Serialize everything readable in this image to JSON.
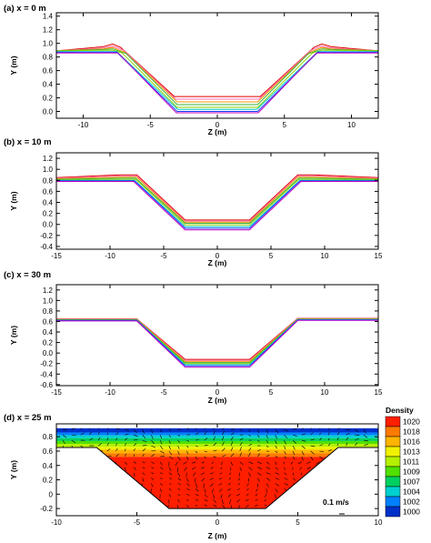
{
  "chart_data": [
    {
      "type": "line",
      "title": "(a) x = 0 m",
      "xlabel": "Z (m)",
      "ylabel": "Y (m)",
      "xlim": [
        -12,
        12
      ],
      "ylim": [
        -0.1,
        1.45
      ],
      "xticks": [
        -10,
        -5,
        0,
        5,
        10
      ],
      "xtick_labels": [
        "-10",
        "-5",
        "0",
        "5",
        "10"
      ],
      "yticks": [
        0.0,
        0.2,
        0.4,
        0.6,
        0.8,
        1.0,
        1.2,
        1.4
      ],
      "ytick_labels": [
        "0.0",
        "0.2",
        "0.4",
        "0.6",
        "0.8",
        "1.0",
        "1.2",
        "1.4"
      ],
      "grid": false,
      "series": [
        {
          "color": "#e00000",
          "values": [
            [
              -12,
              0.89
            ],
            [
              -8.5,
              0.95
            ],
            [
              -7.8,
              0.99
            ],
            [
              -7.2,
              0.94
            ],
            [
              -3.2,
              0.22
            ],
            [
              3.2,
              0.22
            ],
            [
              7.2,
              0.94
            ],
            [
              7.8,
              0.99
            ],
            [
              8.5,
              0.95
            ],
            [
              12,
              0.89
            ]
          ]
        },
        {
          "color": "#ff6fb4",
          "values": [
            [
              -12,
              0.89
            ],
            [
              -8.5,
              0.93
            ],
            [
              -7.8,
              0.96
            ],
            [
              -7.0,
              0.9
            ],
            [
              -3.1,
              0.18
            ],
            [
              3.1,
              0.18
            ],
            [
              7.0,
              0.9
            ],
            [
              7.8,
              0.96
            ],
            [
              8.5,
              0.93
            ],
            [
              12,
              0.89
            ]
          ]
        },
        {
          "color": "#ff9a00",
          "values": [
            [
              -12,
              0.89
            ],
            [
              -8.5,
              0.92
            ],
            [
              -7.8,
              0.94
            ],
            [
              -6.9,
              0.87
            ],
            [
              -3.0,
              0.14
            ],
            [
              3.0,
              0.14
            ],
            [
              6.9,
              0.87
            ],
            [
              7.8,
              0.94
            ],
            [
              8.5,
              0.92
            ],
            [
              12,
              0.89
            ]
          ]
        },
        {
          "color": "#3ab03a",
          "values": [
            [
              -12,
              0.89
            ],
            [
              -8.5,
              0.91
            ],
            [
              -7.8,
              0.92
            ],
            [
              -6.8,
              0.85
            ],
            [
              -3.0,
              0.1
            ],
            [
              3.0,
              0.1
            ],
            [
              6.8,
              0.85
            ],
            [
              7.8,
              0.92
            ],
            [
              8.5,
              0.91
            ],
            [
              12,
              0.89
            ]
          ]
        },
        {
          "color": "#8cd000",
          "values": [
            [
              -12,
              0.89
            ],
            [
              -8.5,
              0.9
            ],
            [
              -7.8,
              0.9
            ],
            [
              -7.1,
              0.86
            ],
            [
              -3.0,
              0.06
            ],
            [
              3.0,
              0.06
            ],
            [
              7.1,
              0.86
            ],
            [
              7.8,
              0.9
            ],
            [
              8.5,
              0.9
            ],
            [
              12,
              0.89
            ]
          ]
        },
        {
          "color": "#00c8c8",
          "values": [
            [
              -12,
              0.88
            ],
            [
              -7.5,
              0.88
            ],
            [
              -2.95,
              0.03
            ],
            [
              2.95,
              0.03
            ],
            [
              7.5,
              0.88
            ],
            [
              12,
              0.88
            ]
          ]
        },
        {
          "color": "#1a3cff",
          "values": [
            [
              -12,
              0.87
            ],
            [
              -7.5,
              0.87
            ],
            [
              -3.0,
              0.0
            ],
            [
              3.0,
              0.0
            ],
            [
              7.5,
              0.87
            ],
            [
              12,
              0.87
            ]
          ]
        },
        {
          "color": "#c000c0",
          "values": [
            [
              -12,
              0.86
            ],
            [
              -7.4,
              0.86
            ],
            [
              -3.05,
              -0.02
            ],
            [
              3.05,
              -0.02
            ],
            [
              7.4,
              0.86
            ],
            [
              12,
              0.86
            ]
          ]
        }
      ]
    },
    {
      "type": "line",
      "title": "(b) x = 10 m",
      "xlabel": "Z (m)",
      "ylabel": "Y (m)",
      "xlim": [
        -15,
        15
      ],
      "ylim": [
        -0.45,
        1.3
      ],
      "xticks": [
        -15,
        -10,
        -5,
        0,
        5,
        10,
        15
      ],
      "xtick_labels": [
        "-15",
        "-10",
        "-5",
        "0",
        "5",
        "10",
        "15"
      ],
      "yticks": [
        -0.4,
        -0.2,
        0.0,
        0.2,
        0.4,
        0.6,
        0.8,
        1.0,
        1.2
      ],
      "ytick_labels": [
        "-0.4",
        "-0.2",
        "0.0",
        "0.2",
        "0.4",
        "0.6",
        "0.8",
        "1.0",
        "1.2"
      ],
      "grid": false,
      "series": [
        {
          "color": "#e00000",
          "values": [
            [
              -15,
              0.85
            ],
            [
              -9,
              0.9
            ],
            [
              -7.5,
              0.9
            ],
            [
              -3.0,
              0.08
            ],
            [
              3.0,
              0.08
            ],
            [
              7.5,
              0.9
            ],
            [
              9,
              0.9
            ],
            [
              15,
              0.85
            ]
          ]
        },
        {
          "color": "#ff6fb4",
          "values": [
            [
              -15,
              0.84
            ],
            [
              -9,
              0.88
            ],
            [
              -7.5,
              0.88
            ],
            [
              -3.0,
              0.06
            ],
            [
              3.0,
              0.06
            ],
            [
              7.5,
              0.88
            ],
            [
              9,
              0.88
            ],
            [
              15,
              0.84
            ]
          ]
        },
        {
          "color": "#ff9a00",
          "values": [
            [
              -15,
              0.83
            ],
            [
              -9,
              0.86
            ],
            [
              -7.5,
              0.86
            ],
            [
              -3.0,
              0.04
            ],
            [
              3.0,
              0.04
            ],
            [
              7.5,
              0.86
            ],
            [
              9,
              0.86
            ],
            [
              15,
              0.83
            ]
          ]
        },
        {
          "color": "#3ab03a",
          "values": [
            [
              -15,
              0.82
            ],
            [
              -9,
              0.84
            ],
            [
              -7.6,
              0.84
            ],
            [
              -3.0,
              0.02
            ],
            [
              3.0,
              0.02
            ],
            [
              7.6,
              0.84
            ],
            [
              9,
              0.84
            ],
            [
              15,
              0.82
            ]
          ]
        },
        {
          "color": "#8cd000",
          "values": [
            [
              -15,
              0.81
            ],
            [
              -9,
              0.82
            ],
            [
              -7.6,
              0.82
            ],
            [
              -3.0,
              -0.01
            ],
            [
              3.0,
              -0.01
            ],
            [
              7.6,
              0.82
            ],
            [
              9,
              0.82
            ],
            [
              15,
              0.81
            ]
          ]
        },
        {
          "color": "#00c8c8",
          "values": [
            [
              -15,
              0.8
            ],
            [
              -7.7,
              0.8
            ],
            [
              -3.0,
              -0.04
            ],
            [
              3.0,
              -0.04
            ],
            [
              7.7,
              0.8
            ],
            [
              15,
              0.8
            ]
          ]
        },
        {
          "color": "#1a3cff",
          "values": [
            [
              -15,
              0.79
            ],
            [
              -7.7,
              0.79
            ],
            [
              -3.0,
              -0.07
            ],
            [
              3.0,
              -0.07
            ],
            [
              7.7,
              0.79
            ],
            [
              15,
              0.79
            ]
          ]
        },
        {
          "color": "#c000c0",
          "values": [
            [
              -15,
              0.78
            ],
            [
              -7.8,
              0.78
            ],
            [
              -3.0,
              -0.1
            ],
            [
              3.0,
              -0.1
            ],
            [
              7.8,
              0.78
            ],
            [
              15,
              0.78
            ]
          ]
        }
      ]
    },
    {
      "type": "line",
      "title": "(c) x = 30 m",
      "xlabel": "Z (m)",
      "ylabel": "Y (m)",
      "xlim": [
        -15,
        15
      ],
      "ylim": [
        -0.62,
        1.3
      ],
      "xticks": [
        -15,
        -10,
        -5,
        0,
        5,
        10,
        15
      ],
      "xtick_labels": [
        "-15",
        "-10",
        "-5",
        "0",
        "5",
        "10",
        "15"
      ],
      "yticks": [
        -0.6,
        -0.4,
        -0.2,
        0.0,
        0.2,
        0.4,
        0.6,
        0.8,
        1.0,
        1.2
      ],
      "ytick_labels": [
        "-0.6",
        "-0.4",
        "-0.2",
        "0.0",
        "0.2",
        "0.4",
        "0.6",
        "0.8",
        "1.0",
        "1.2"
      ],
      "grid": false,
      "series": [
        {
          "color": "#e00000",
          "values": [
            [
              -15,
              0.65
            ],
            [
              -7.5,
              0.65
            ],
            [
              -3.0,
              -0.12
            ],
            [
              3.0,
              -0.12
            ],
            [
              7.5,
              0.66
            ],
            [
              15,
              0.66
            ]
          ]
        },
        {
          "color": "#ff6fb4",
          "values": [
            [
              -15,
              0.645
            ],
            [
              -7.5,
              0.645
            ],
            [
              -3.0,
              -0.14
            ],
            [
              3.0,
              -0.14
            ],
            [
              7.5,
              0.655
            ],
            [
              15,
              0.655
            ]
          ]
        },
        {
          "color": "#ff9a00",
          "values": [
            [
              -15,
              0.64
            ],
            [
              -7.5,
              0.64
            ],
            [
              -3.0,
              -0.16
            ],
            [
              3.0,
              -0.16
            ],
            [
              7.5,
              0.65
            ],
            [
              15,
              0.65
            ]
          ]
        },
        {
          "color": "#3ab03a",
          "values": [
            [
              -15,
              0.635
            ],
            [
              -7.5,
              0.635
            ],
            [
              -3.0,
              -0.18
            ],
            [
              3.0,
              -0.18
            ],
            [
              7.5,
              0.645
            ],
            [
              15,
              0.645
            ]
          ]
        },
        {
          "color": "#8cd000",
          "values": [
            [
              -15,
              0.63
            ],
            [
              -7.5,
              0.63
            ],
            [
              -3.0,
              -0.2
            ],
            [
              3.0,
              -0.2
            ],
            [
              7.5,
              0.64
            ],
            [
              15,
              0.64
            ]
          ]
        },
        {
          "color": "#00c8c8",
          "values": [
            [
              -15,
              0.625
            ],
            [
              -7.5,
              0.625
            ],
            [
              -3.0,
              -0.22
            ],
            [
              3.0,
              -0.22
            ],
            [
              7.5,
              0.635
            ],
            [
              15,
              0.635
            ]
          ]
        },
        {
          "color": "#1a3cff",
          "values": [
            [
              -15,
              0.62
            ],
            [
              -7.5,
              0.62
            ],
            [
              -3.0,
              -0.245
            ],
            [
              3.0,
              -0.245
            ],
            [
              7.5,
              0.63
            ],
            [
              15,
              0.63
            ]
          ]
        },
        {
          "color": "#c000c0",
          "values": [
            [
              -15,
              0.61
            ],
            [
              -7.5,
              0.61
            ],
            [
              -3.0,
              -0.27
            ],
            [
              3.0,
              -0.27
            ],
            [
              7.5,
              0.62
            ],
            [
              15,
              0.62
            ]
          ]
        }
      ]
    },
    {
      "type": "heatmap",
      "title": "(d) x = 25 m",
      "xlabel": "Z (m)",
      "ylabel": "Y (m)",
      "xlim": [
        -10,
        10
      ],
      "ylim": [
        -0.3,
        0.98
      ],
      "xticks": [
        -10,
        -5,
        0,
        5,
        10
      ],
      "xtick_labels": [
        "-10",
        "-5",
        "0",
        "5",
        "10"
      ],
      "yticks": [
        -0.2,
        0.0,
        0.2,
        0.4,
        0.6,
        0.8
      ],
      "ytick_labels": [
        "-0.2",
        "0",
        "0.2",
        "0.4",
        "0.6",
        "0.8"
      ],
      "domain_outline": [
        [
          -10,
          0.92
        ],
        [
          -10,
          0.65
        ],
        [
          -7.5,
          0.65
        ],
        [
          -3.0,
          -0.2
        ],
        [
          3.0,
          -0.2
        ],
        [
          7.5,
          0.65
        ],
        [
          10,
          0.65
        ],
        [
          10,
          0.92
        ]
      ],
      "density_bands": [
        {
          "y_top": 0.92,
          "y_bottom": 0.86,
          "value": 1000
        },
        {
          "y_top": 0.86,
          "y_bottom": 0.82,
          "value": 1002
        },
        {
          "y_top": 0.82,
          "y_bottom": 0.78,
          "value": 1004
        },
        {
          "y_top": 0.78,
          "y_bottom": 0.74,
          "value": 1007
        },
        {
          "y_top": 0.74,
          "y_bottom": 0.7,
          "value": 1009
        },
        {
          "y_top": 0.7,
          "y_bottom": 0.66,
          "value": 1011
        },
        {
          "y_top": 0.66,
          "y_bottom": 0.62,
          "value": 1013
        },
        {
          "y_top": 0.62,
          "y_bottom": 0.57,
          "value": 1016
        },
        {
          "y_top": 0.57,
          "y_bottom": 0.52,
          "value": 1018
        },
        {
          "y_top": 0.52,
          "y_bottom": -0.3,
          "value": 1020
        }
      ],
      "legend": {
        "title": "Density",
        "levels": [
          {
            "label": "1020",
            "color": "#ff1e00"
          },
          {
            "label": "1018",
            "color": "#ff7a00"
          },
          {
            "label": "1016",
            "color": "#ffb400"
          },
          {
            "label": "1013",
            "color": "#f0f000"
          },
          {
            "label": "1011",
            "color": "#b4f000"
          },
          {
            "label": "1009",
            "color": "#50e000"
          },
          {
            "label": "1007",
            "color": "#00d060"
          },
          {
            "label": "1004",
            "color": "#00d0d0"
          },
          {
            "label": "1002",
            "color": "#0080ff"
          },
          {
            "label": "1000",
            "color": "#0030c8"
          }
        ]
      },
      "vector_scale_label": "0.1 m/s",
      "vectors": "velocity arrows over the channel section"
    }
  ]
}
